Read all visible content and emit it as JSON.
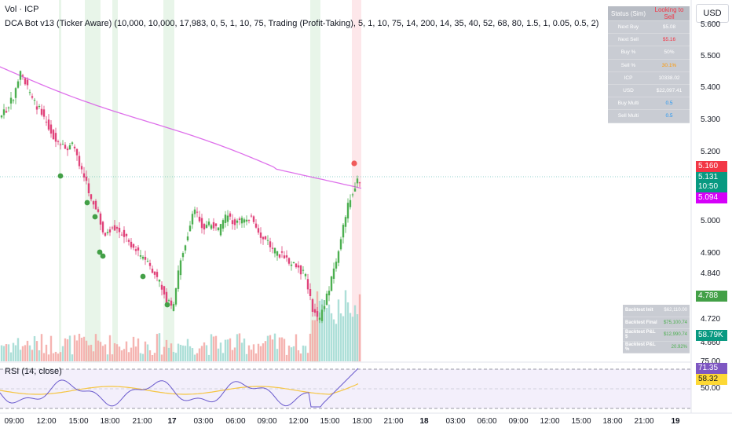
{
  "symbol_line": "Vol · ICP",
  "indicator_line": "DCA Bot v13 (Ticker Aware) (10,000, 10,000, 17,983, 0, 5, 1, 10, 75, Trading (Profit-Taking), 5, 1, 10, 75, 14, 200, 14, 35, 40, 52, 68, 80, 1.5, 1, 0.05, 0.5, 2)",
  "rsi_label": "RSI (14, close)",
  "currency_button": "USD",
  "price_axis": [
    "5.600",
    "5.500",
    "5.400",
    "5.300",
    "5.200",
    "5.000",
    "4.900",
    "4.840",
    "4.720",
    "4.660"
  ],
  "price_tags": {
    "red": "5.160",
    "green_price": "5.131",
    "countdown": "10:50",
    "magenta": "5.094",
    "green_low": "4.788",
    "volume": "58.79K",
    "rsi": "71.35",
    "rsi_ma": "58.32"
  },
  "rsi_axis": [
    "75.00",
    "50.00"
  ],
  "status_table": {
    "header_key": "Status (Sim)",
    "header_value": "Looking to Sell",
    "rows": [
      {
        "k": "Next Buy",
        "v": "$5.08"
      },
      {
        "k": "Next Sell",
        "v": "$5.16"
      },
      {
        "k": "Buy %",
        "v": "50%"
      },
      {
        "k": "Sell %",
        "v": "30.1%"
      },
      {
        "k": "ICP",
        "v": "10338.02"
      },
      {
        "k": "USD",
        "v": "$22,097.41"
      },
      {
        "k": "Buy Multi",
        "v": "0.5"
      },
      {
        "k": "Sell Multi",
        "v": "0.5"
      }
    ]
  },
  "backtest_table": [
    {
      "k": "Backtest Init",
      "v": "$62,110.00"
    },
    {
      "k": "Backtest Final",
      "v": "$75,100.74"
    },
    {
      "k": "Backtest P&L $",
      "v": "$12,990.74"
    },
    {
      "k": "Backtest P&L %",
      "v": "20.92%"
    }
  ],
  "time_axis": [
    "09:00",
    "12:00",
    "15:00",
    "18:00",
    "21:00",
    "17",
    "03:00",
    "06:00",
    "09:00",
    "12:00",
    "15:00",
    "18:00",
    "21:00",
    "18",
    "03:00",
    "06:00",
    "09:00",
    "12:00",
    "15:00",
    "18:00",
    "21:00",
    "19"
  ],
  "colors": {
    "up": "#26a69a",
    "up_candle": "#4caf50",
    "down": "#ef5350",
    "down_candle": "#e0437a",
    "ma": "#d64ee6",
    "rsi": "#6a5acd",
    "rsi_ma": "#f5c542",
    "buy_zone": "#e8f5e9",
    "sell_zone": "#fde7ea"
  }
}
